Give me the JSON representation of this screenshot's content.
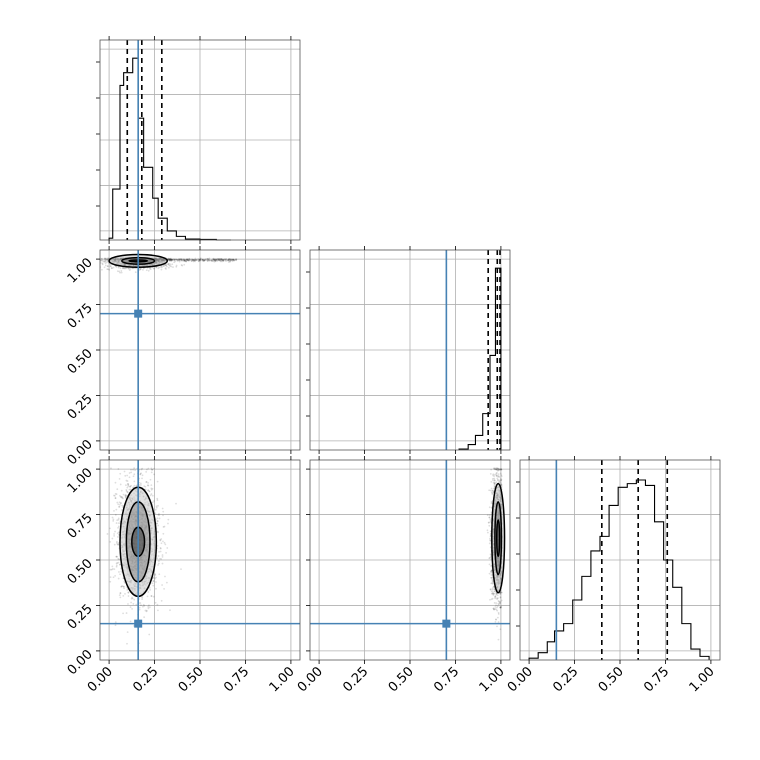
{
  "chart_data": {
    "type": "corner",
    "parameters": [
      "",
      "",
      ""
    ],
    "ticks": {
      "values": [
        0.0,
        0.25,
        0.5,
        0.75,
        1.0
      ],
      "labels": [
        "0.00",
        "0.25",
        "0.50",
        "0.75",
        "1.00"
      ],
      "range": [
        -0.05,
        1.05
      ]
    },
    "grid": true,
    "colors": {
      "truth": "#4682b4",
      "histogram": "#000000",
      "density": "#000000"
    },
    "truths": [
      0.16,
      0.7,
      0.15
    ],
    "quantiles": [
      {
        "q16": 0.1,
        "q50": 0.18,
        "q84": 0.29
      },
      {
        "q16": 0.93,
        "q50": 0.98,
        "q84": 0.995
      },
      {
        "q16": 0.4,
        "q50": 0.6,
        "q84": 0.76
      }
    ],
    "histograms": [
      {
        "bin_edges": [
          0.0,
          0.02,
          0.06,
          0.08,
          0.13,
          0.16,
          0.19,
          0.24,
          0.27,
          0.32,
          0.37,
          0.42,
          0.5,
          0.59,
          0.67
        ],
        "counts": [
          0.01,
          0.28,
          0.85,
          0.92,
          1.0,
          0.67,
          0.4,
          0.23,
          0.12,
          0.05,
          0.02,
          0.005,
          0.003,
          0.0
        ]
      },
      {
        "bin_edges": [
          0.77,
          0.82,
          0.86,
          0.9,
          0.94,
          0.97,
          1.0
        ],
        "counts": [
          0.005,
          0.03,
          0.08,
          0.2,
          0.52,
          1.0
        ]
      },
      {
        "bin_edges": [
          0.0,
          0.05,
          0.1,
          0.14,
          0.19,
          0.24,
          0.29,
          0.34,
          0.39,
          0.44,
          0.49,
          0.54,
          0.59,
          0.64,
          0.69,
          0.74,
          0.79,
          0.84,
          0.89,
          0.94,
          0.99
        ],
        "counts": [
          0.01,
          0.04,
          0.1,
          0.16,
          0.2,
          0.33,
          0.46,
          0.6,
          0.68,
          0.85,
          0.95,
          0.97,
          0.99,
          0.96,
          0.76,
          0.55,
          0.4,
          0.2,
          0.06,
          0.02
        ]
      }
    ],
    "density_panels": [
      {
        "x_param": 0,
        "y_param": 1,
        "center": [
          0.16,
          0.99
        ],
        "contours": [
          [
            0.05,
            0.005
          ],
          [
            0.09,
            0.018
          ],
          [
            0.16,
            0.035
          ]
        ],
        "tail": {
          "x_end": 0.7,
          "y": 0.995
        }
      },
      {
        "x_param": 0,
        "y_param": 2,
        "center": [
          0.16,
          0.6
        ],
        "contours": [
          [
            0.035,
            0.08
          ],
          [
            0.065,
            0.22
          ],
          [
            0.1,
            0.3
          ]
        ]
      },
      {
        "x_param": 1,
        "y_param": 2,
        "center": [
          0.985,
          0.62
        ],
        "contours": [
          [
            0.008,
            0.1
          ],
          [
            0.018,
            0.2
          ],
          [
            0.035,
            0.3
          ]
        ]
      }
    ]
  }
}
